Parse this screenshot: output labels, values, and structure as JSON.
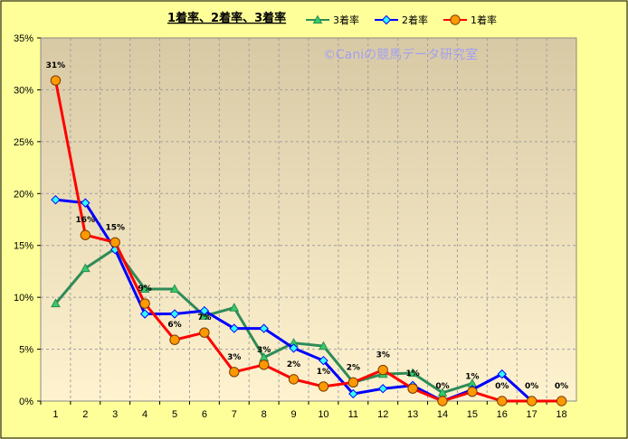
{
  "watermark": "©Caniの競馬データ研究室",
  "chart_data": {
    "type": "line",
    "title": "1着率、2着率、3着率",
    "categories": [
      "1",
      "2",
      "3",
      "4",
      "5",
      "6",
      "7",
      "8",
      "9",
      "10",
      "11",
      "12",
      "13",
      "14",
      "15",
      "16",
      "17",
      "18"
    ],
    "y_ticks": [
      "0%",
      "5%",
      "10%",
      "15%",
      "20%",
      "25%",
      "30%",
      "35%"
    ],
    "ylim": [
      0,
      35
    ],
    "grid": true,
    "legend_position": "top",
    "background": {
      "outer": "#ffff99",
      "plot_top": "#d8c9a5",
      "plot_bottom": "#fff3cf"
    },
    "series": [
      {
        "name": "3着率",
        "color": "#2e8b57",
        "marker": "triangle",
        "marker_fill": "#33cc66",
        "values": [
          9.4,
          12.8,
          14.7,
          10.8,
          10.8,
          8.2,
          9.0,
          4.2,
          5.6,
          5.3,
          1.8,
          2.6,
          2.7,
          0.8,
          1.7,
          null,
          null,
          null
        ]
      },
      {
        "name": "2着率",
        "color": "#0000ff",
        "marker": "diamond",
        "marker_fill": "#33ffff",
        "values": [
          19.4,
          19.1,
          14.6,
          8.4,
          8.4,
          8.7,
          7.0,
          7.0,
          5.1,
          3.9,
          0.7,
          1.2,
          1.5,
          0.0,
          1.1,
          2.6,
          0.0,
          null
        ]
      },
      {
        "name": "1着率",
        "color": "#ff0000",
        "marker": "circle",
        "marker_fill": "#ff9900",
        "values": [
          30.9,
          16.0,
          15.3,
          9.4,
          5.9,
          6.6,
          2.8,
          3.5,
          2.1,
          1.4,
          1.8,
          3.0,
          1.2,
          0.0,
          0.9,
          0.0,
          0.0,
          0.0
        ]
      }
    ],
    "data_labels": [
      "31%",
      "16%",
      "15%",
      "9%",
      "6%",
      "7%",
      "3%",
      "3%",
      "2%",
      "1%",
      "2%",
      "3%",
      "1%",
      "0%",
      "1%",
      "0%",
      "0%",
      "0%"
    ]
  }
}
